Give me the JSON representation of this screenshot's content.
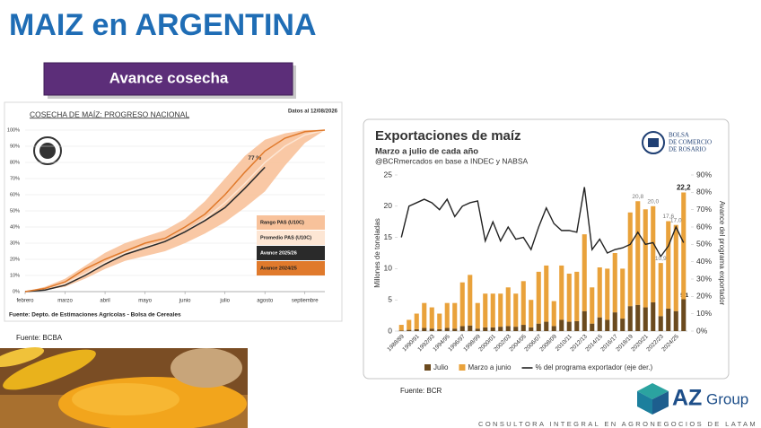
{
  "header": {
    "title": "MAIZ en ARGENTINA",
    "section": "Avance cosecha"
  },
  "sources": [
    "Fuente: BCBA",
    "Fuente: BCR"
  ],
  "logo": {
    "mark": "AZ",
    "word": "Group",
    "tagline": "CONSULTORA INTEGRAL EN AGRONEGOCIOS DE LATAM"
  },
  "chart_data": [
    {
      "type": "line",
      "title": "COSECHA DE MAÍZ: PROGRESO NACIONAL",
      "note": "Datos al 12/08/2026",
      "source": "Fuente: Depto. de Estimaciones Agrícolas - Bolsa de Cereales",
      "x": [
        0,
        0.5,
        1,
        1.5,
        2,
        2.5,
        3,
        3.5,
        4,
        4.5,
        5,
        5.5,
        6,
        6.5,
        7,
        7.5
      ],
      "xlim": [
        0,
        7.5
      ],
      "xticks": [
        {
          "value": 0,
          "label": "febrero"
        },
        {
          "value": 1,
          "label": "marzo"
        },
        {
          "value": 2,
          "label": "abril"
        },
        {
          "value": 3,
          "label": "mayo"
        },
        {
          "value": 4,
          "label": "junio"
        },
        {
          "value": 5,
          "label": "julio"
        },
        {
          "value": 6,
          "label": "agosto"
        },
        {
          "value": 7,
          "label": "septiembre"
        }
      ],
      "ylim": [
        0,
        100
      ],
      "yticks": [
        {
          "value": 0,
          "label": "0%"
        },
        {
          "value": 10,
          "label": "10%"
        },
        {
          "value": 20,
          "label": "20%"
        },
        {
          "value": 30,
          "label": "30%"
        },
        {
          "value": 40,
          "label": "40%"
        },
        {
          "value": 50,
          "label": "50%"
        },
        {
          "value": 60,
          "label": "60%"
        },
        {
          "value": 70,
          "label": "70%"
        },
        {
          "value": 80,
          "label": "80%"
        },
        {
          "value": 90,
          "label": "90%"
        },
        {
          "value": 100,
          "label": "100%"
        }
      ],
      "grid": true,
      "legend": "lower right",
      "series": [
        {
          "name": "Rango PAS (U10C)",
          "style": "band",
          "color": "#f8c29b",
          "low": [
            0,
            1,
            3,
            8,
            14,
            19,
            22,
            25,
            30,
            36,
            43,
            52,
            62,
            78,
            92,
            100
          ],
          "high": [
            0,
            3,
            8,
            16,
            24,
            30,
            34,
            38,
            45,
            56,
            70,
            84,
            94,
            98,
            100,
            100
          ]
        },
        {
          "name": "Promedio PAS (U10C)",
          "style": "line",
          "color": "#fde6d4",
          "values": [
            0,
            2,
            5,
            11,
            18,
            24,
            28,
            31,
            37,
            45,
            55,
            67,
            80,
            90,
            97,
            100
          ]
        },
        {
          "name": "Avance 2025/26",
          "style": "line",
          "color": "#2a2a2a",
          "values": [
            0,
            1,
            4,
            10,
            17,
            23,
            27,
            31,
            37,
            44,
            52,
            64,
            77,
            null,
            null,
            null
          ],
          "value_labels": [
            null,
            null,
            null,
            null,
            null,
            null,
            null,
            null,
            null,
            null,
            null,
            null,
            "77 %",
            null,
            null,
            null
          ]
        },
        {
          "name": "Avance 2024/25",
          "style": "line",
          "color": "#e07a2c",
          "values": [
            0,
            2,
            6,
            14,
            20,
            25,
            30,
            33,
            40,
            48,
            60,
            74,
            87,
            95,
            99,
            100
          ]
        }
      ]
    },
    {
      "type": "bar",
      "stacked": true,
      "title": "Exportaciones de maíz",
      "subtitle": "Marzo a julio de cada año",
      "note": "@BCRmercados en base a INDEC y NABSA",
      "ylabel": "Millones de toneladas",
      "y2label": "Avance del programa exportador",
      "logo_text": [
        "BOLSA",
        "DE COMERCIO",
        "DE ROSARIO"
      ],
      "categories": [
        "1988/89",
        null,
        "1990/91",
        null,
        "1992/93",
        null,
        "1994/95",
        null,
        "1996/97",
        null,
        "1998/99",
        null,
        "2000/01",
        null,
        "2002/03",
        null,
        "2004/05",
        null,
        "2006/07",
        null,
        "2008/09",
        null,
        "2010/11",
        null,
        "2012/13",
        null,
        "2014/15",
        null,
        "2016/17",
        null,
        "2018/19",
        null,
        "2020/21",
        null,
        "2022/23",
        null,
        "2024/25",
        null
      ],
      "ylim": [
        0,
        25
      ],
      "yticks": [
        0,
        5,
        10,
        15,
        20,
        25
      ],
      "y2lim": [
        0,
        90
      ],
      "y2ticks": [
        {
          "value": 0,
          "label": "0%"
        },
        {
          "value": 10,
          "label": "10%"
        },
        {
          "value": 20,
          "label": "20%"
        },
        {
          "value": 30,
          "label": "30%"
        },
        {
          "value": 40,
          "label": "40%"
        },
        {
          "value": 50,
          "label": "50%"
        },
        {
          "value": 60,
          "label": "60%"
        },
        {
          "value": 70,
          "label": "70%"
        },
        {
          "value": 80,
          "label": "80%"
        },
        {
          "value": 90,
          "label": "90%"
        }
      ],
      "legend": "bottom",
      "series": [
        {
          "name": "Julio",
          "color": "#6b4a1e",
          "values": [
            0.1,
            0.2,
            0.3,
            0.5,
            0.4,
            0.3,
            0.5,
            0.4,
            0.8,
            0.9,
            0.4,
            0.6,
            0.6,
            0.7,
            0.8,
            0.7,
            1.0,
            0.6,
            1.2,
            1.5,
            0.8,
            1.8,
            1.5,
            1.6,
            3.2,
            1.2,
            2.2,
            1.8,
            3.0,
            2.0,
            4.0,
            4.2,
            3.8,
            4.6,
            2.4,
            3.6,
            3.2,
            5.1
          ],
          "value_labels": [
            null,
            null,
            null,
            null,
            null,
            null,
            null,
            null,
            null,
            null,
            null,
            null,
            null,
            null,
            null,
            null,
            null,
            null,
            null,
            null,
            null,
            null,
            null,
            null,
            null,
            null,
            null,
            null,
            null,
            null,
            null,
            null,
            null,
            null,
            null,
            null,
            null,
            "5,1"
          ]
        },
        {
          "name": "Marzo a junio",
          "color": "#e9a23b",
          "values": [
            0.9,
            1.6,
            2.5,
            4.0,
            3.4,
            2.5,
            4.0,
            4.1,
            7.0,
            8.1,
            4.1,
            5.4,
            5.4,
            5.3,
            6.2,
            5.3,
            7.0,
            4.4,
            8.3,
            9.0,
            4.0,
            8.7,
            7.7,
            7.9,
            12.3,
            5.8,
            8.0,
            8.2,
            9.5,
            8.0,
            15.0,
            16.6,
            15.7,
            15.4,
            8.5,
            14.0,
            13.8,
            17.1
          ]
        },
        {
          "name": "% del programa exportador (eje der.)",
          "type": "line",
          "axis": "y2",
          "color": "#222222",
          "values": [
            54,
            72,
            74,
            76,
            74,
            70,
            76,
            66,
            72,
            74,
            75,
            52,
            63,
            52,
            60,
            53,
            54,
            47,
            60,
            71,
            62,
            58,
            58,
            57,
            83,
            47,
            53,
            45,
            47,
            48,
            50,
            57,
            50,
            51,
            43,
            49,
            60,
            51
          ]
        }
      ],
      "total_labels": [
        null,
        null,
        null,
        null,
        null,
        null,
        null,
        null,
        null,
        null,
        null,
        null,
        null,
        null,
        null,
        null,
        null,
        null,
        null,
        null,
        null,
        null,
        null,
        null,
        null,
        null,
        null,
        null,
        null,
        null,
        null,
        "20,8",
        null,
        "20,0",
        "10,9",
        "17,6",
        "17,0",
        "22,2"
      ]
    }
  ]
}
